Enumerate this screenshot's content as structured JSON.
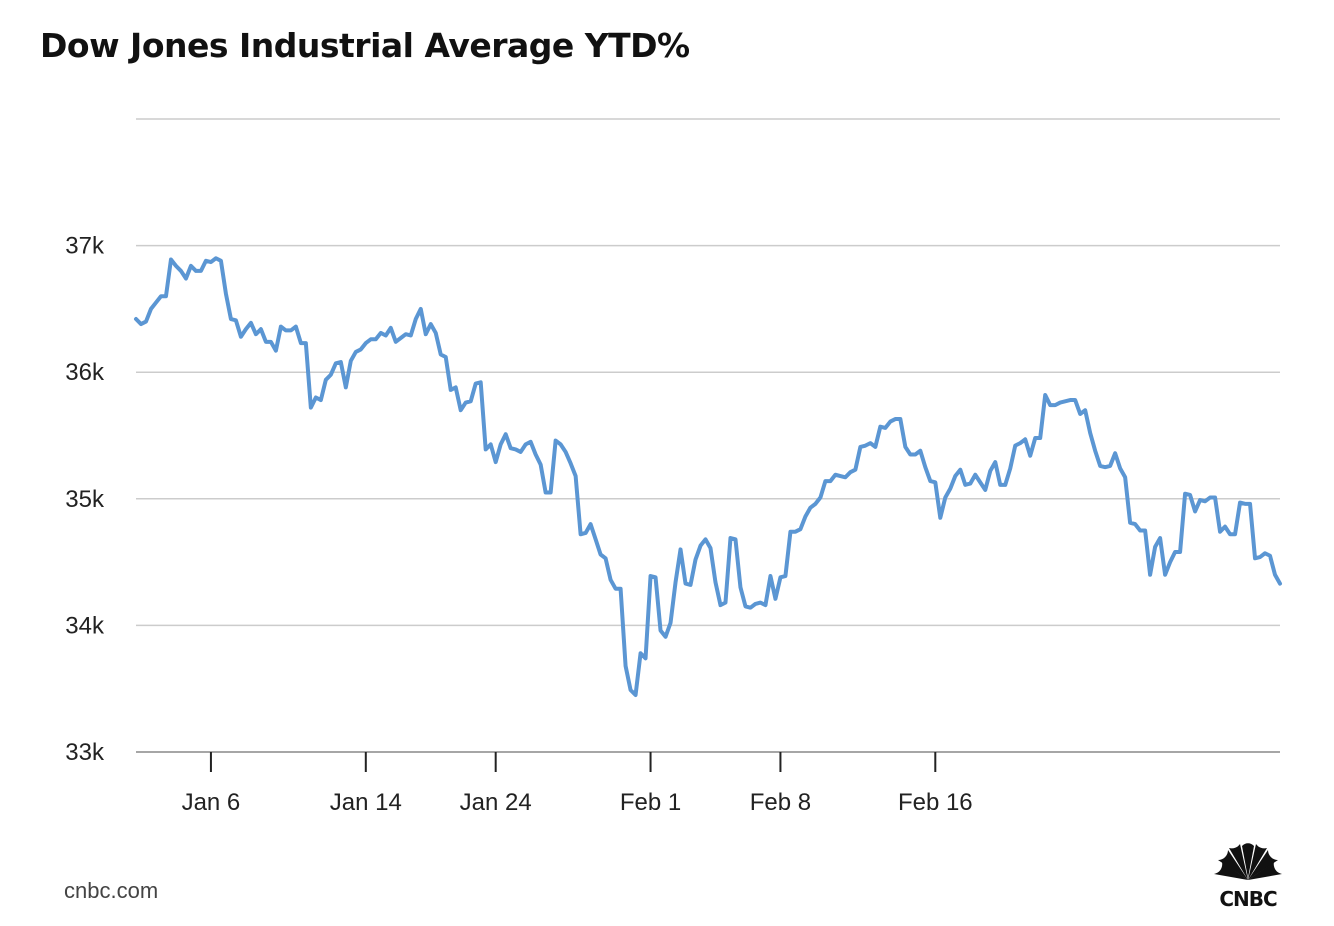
{
  "header": {
    "title": "Dow Jones Industrial Average YTD%"
  },
  "footer": {
    "source": "cnbc.com",
    "logo_text": "CNBC"
  },
  "colors": {
    "line": "#5b96d3",
    "grid": "#cccccc",
    "axis": "#888888"
  },
  "chart_data": {
    "type": "line",
    "title": "Dow Jones Industrial Average YTD%",
    "xlabel": "",
    "ylabel": "",
    "ylim": [
      33000,
      38000
    ],
    "yticks": [
      33000,
      34000,
      35000,
      36000,
      37000
    ],
    "ytick_labels": [
      "33k",
      "34k",
      "35k",
      "36k",
      "37k"
    ],
    "xticks": [
      {
        "label": "Jan 6",
        "index": 15
      },
      {
        "label": "Jan 14",
        "index": 46
      },
      {
        "label": "Jan 24",
        "index": 72
      },
      {
        "label": "Feb 1",
        "index": 103
      },
      {
        "label": "Feb 8",
        "index": 129
      },
      {
        "label": "Feb 16",
        "index": 160
      }
    ],
    "grid": true,
    "series": [
      {
        "name": "Dow Jones Industrial Average",
        "values": [
          36420,
          36380,
          36400,
          36500,
          36550,
          36600,
          36600,
          36890,
          36840,
          36800,
          36740,
          36840,
          36800,
          36800,
          36880,
          36870,
          36900,
          36880,
          36620,
          36420,
          36410,
          36280,
          36340,
          36390,
          36300,
          36340,
          36240,
          36240,
          36170,
          36360,
          36330,
          36330,
          36360,
          36230,
          36230,
          35720,
          35800,
          35780,
          35940,
          35980,
          36070,
          36080,
          35880,
          36090,
          36160,
          36180,
          36230,
          36260,
          36260,
          36310,
          36290,
          36350,
          36240,
          36270,
          36300,
          36290,
          36420,
          36500,
          36300,
          36380,
          36310,
          36140,
          36120,
          35860,
          35880,
          35700,
          35760,
          35770,
          35910,
          35920,
          35390,
          35430,
          35290,
          35430,
          35510,
          35400,
          35390,
          35370,
          35430,
          35450,
          35350,
          35270,
          35050,
          35050,
          35460,
          35430,
          35370,
          35280,
          35180,
          34720,
          34730,
          34800,
          34680,
          34560,
          34530,
          34360,
          34290,
          34290,
          33680,
          33490,
          33450,
          33780,
          33740,
          34390,
          34380,
          33960,
          33910,
          34020,
          34340,
          34600,
          34330,
          34320,
          34520,
          34630,
          34680,
          34610,
          34340,
          34160,
          34180,
          34690,
          34680,
          34300,
          34150,
          34140,
          34170,
          34180,
          34160,
          34390,
          34210,
          34380,
          34390,
          34740,
          34740,
          34760,
          34860,
          34930,
          34960,
          35010,
          35140,
          35140,
          35190,
          35180,
          35170,
          35210,
          35230,
          35410,
          35420,
          35440,
          35410,
          35570,
          35560,
          35610,
          35630,
          35630,
          35410,
          35350,
          35350,
          35380,
          35250,
          35140,
          35130,
          34850,
          35010,
          35080,
          35180,
          35230,
          35110,
          35120,
          35190,
          35130,
          35070,
          35220,
          35290,
          35110,
          35110,
          35240,
          35420,
          35440,
          35470,
          35340,
          35480,
          35480,
          35820,
          35740,
          35740,
          35760,
          35770,
          35780,
          35780,
          35670,
          35700,
          35520,
          35380,
          35260,
          35250,
          35260,
          35360,
          35240,
          35170,
          34810,
          34800,
          34750,
          34750,
          34400,
          34620,
          34690,
          34400,
          34500,
          34580,
          34580,
          35040,
          35030,
          34900,
          34990,
          34980,
          35010,
          35010,
          34740,
          34780,
          34720,
          34720,
          34970,
          34960,
          34960,
          34530,
          34540,
          34570,
          34550,
          34400,
          34330
        ]
      }
    ]
  }
}
